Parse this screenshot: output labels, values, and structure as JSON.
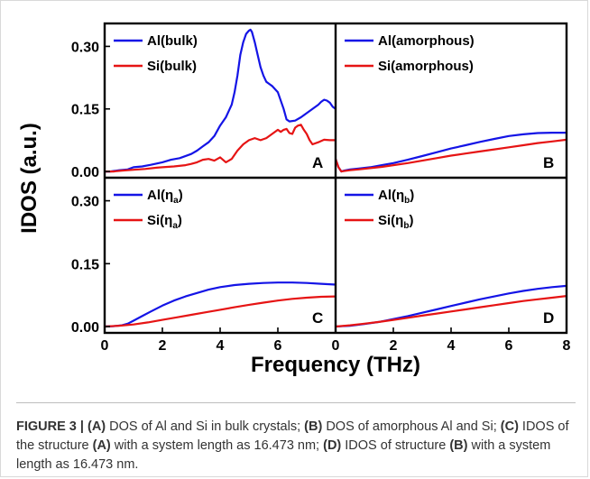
{
  "chart_data": {
    "type": "line",
    "layout": "2x2 panel grid, shared axes",
    "ylabel": "IDOS (a.u.)",
    "xlabel": "Frequency (THz)",
    "x_ticks": [
      "0",
      "2",
      "4",
      "6",
      "8"
    ],
    "y_ticks": [
      "0.00",
      "0.15",
      "0.30"
    ],
    "colors": {
      "Al": "#1414e6",
      "Si": "#e61414"
    },
    "panels": [
      {
        "id": "A",
        "label": "A",
        "xlim": [
          0,
          8
        ],
        "ylim": [
          -0.015,
          0.355
        ],
        "legend": "top-left",
        "series": [
          {
            "name": "Al(bulk)",
            "x": [
              0,
              0.2,
              0.5,
              0.8,
              1.0,
              1.3,
              1.6,
              2.0,
              2.3,
              2.6,
              3.0,
              3.2,
              3.4,
              3.6,
              3.8,
              4.0,
              4.2,
              4.4,
              4.5,
              4.6,
              4.7,
              4.8,
              4.9,
              5.0,
              5.05,
              5.1,
              5.2,
              5.3,
              5.4,
              5.5,
              5.6,
              5.7,
              5.8,
              6.0,
              6.2,
              6.3,
              6.4,
              6.6,
              6.8,
              7.0,
              7.2,
              7.4,
              7.5,
              7.6,
              7.7,
              7.8,
              7.9,
              8.0
            ],
            "y": [
              0.0,
              0.0,
              0.003,
              0.005,
              0.01,
              0.012,
              0.016,
              0.022,
              0.028,
              0.032,
              0.042,
              0.05,
              0.06,
              0.07,
              0.085,
              0.11,
              0.13,
              0.16,
              0.19,
              0.23,
              0.28,
              0.31,
              0.33,
              0.338,
              0.34,
              0.335,
              0.31,
              0.28,
              0.25,
              0.23,
              0.215,
              0.21,
              0.205,
              0.19,
              0.15,
              0.125,
              0.12,
              0.122,
              0.13,
              0.14,
              0.15,
              0.16,
              0.167,
              0.172,
              0.17,
              0.165,
              0.155,
              0.15
            ]
          },
          {
            "name": "Si(bulk)",
            "x": [
              0,
              0.3,
              0.6,
              1.0,
              1.4,
              1.8,
              2.0,
              2.4,
              2.8,
              3.0,
              3.2,
              3.4,
              3.6,
              3.8,
              4.0,
              4.2,
              4.4,
              4.6,
              4.8,
              5.0,
              5.2,
              5.4,
              5.6,
              5.8,
              6.0,
              6.1,
              6.2,
              6.3,
              6.4,
              6.5,
              6.6,
              6.7,
              6.8,
              6.9,
              7.0,
              7.1,
              7.2,
              7.4,
              7.6,
              7.8,
              8.0
            ],
            "y": [
              0.0,
              0.0,
              0.002,
              0.004,
              0.006,
              0.009,
              0.01,
              0.012,
              0.015,
              0.018,
              0.022,
              0.028,
              0.03,
              0.026,
              0.034,
              0.022,
              0.03,
              0.05,
              0.065,
              0.075,
              0.08,
              0.075,
              0.08,
              0.09,
              0.1,
              0.095,
              0.1,
              0.102,
              0.092,
              0.09,
              0.105,
              0.11,
              0.112,
              0.1,
              0.09,
              0.075,
              0.065,
              0.07,
              0.076,
              0.075,
              0.075
            ]
          }
        ]
      },
      {
        "id": "B",
        "label": "B",
        "xlim": [
          0,
          8
        ],
        "ylim": [
          -0.015,
          0.355
        ],
        "legend": "top-left",
        "series": [
          {
            "name": "Al(amorphous)",
            "x": [
              0,
              0.1,
              0.2,
              0.3,
              0.5,
              0.8,
              1.2,
              1.6,
              2.0,
              2.5,
              3.0,
              3.5,
              4.0,
              4.5,
              5.0,
              5.5,
              6.0,
              6.5,
              7.0,
              7.5,
              8.0
            ],
            "y": [
              0.03,
              0.01,
              0.0,
              0.002,
              0.005,
              0.007,
              0.01,
              0.015,
              0.02,
              0.028,
              0.037,
              0.046,
              0.055,
              0.063,
              0.071,
              0.078,
              0.085,
              0.089,
              0.092,
              0.093,
              0.093
            ]
          },
          {
            "name": "Si(amorphous)",
            "x": [
              0,
              0.1,
              0.2,
              0.3,
              0.5,
              0.8,
              1.2,
              1.6,
              2.0,
              2.5,
              3.0,
              3.5,
              4.0,
              4.5,
              5.0,
              5.5,
              6.0,
              6.5,
              7.0,
              7.5,
              8.0
            ],
            "y": [
              0.03,
              0.01,
              0.0,
              0.001,
              0.003,
              0.005,
              0.008,
              0.011,
              0.015,
              0.02,
              0.026,
              0.032,
              0.038,
              0.043,
              0.048,
              0.053,
              0.058,
              0.063,
              0.068,
              0.072,
              0.076
            ]
          }
        ]
      },
      {
        "id": "C",
        "label": "C",
        "xlim": [
          0,
          8
        ],
        "ylim": [
          -0.015,
          0.355
        ],
        "legend": "top-left",
        "series": [
          {
            "name": "Al(ηa)",
            "x": [
              0,
              0.3,
              0.6,
              0.8,
              1.0,
              1.3,
              1.6,
              2.0,
              2.4,
              2.8,
              3.2,
              3.6,
              4.0,
              4.5,
              5.0,
              5.5,
              6.0,
              6.5,
              7.0,
              7.5,
              8.0
            ],
            "y": [
              0.0,
              0.001,
              0.003,
              0.007,
              0.014,
              0.025,
              0.036,
              0.05,
              0.062,
              0.072,
              0.08,
              0.088,
              0.094,
              0.099,
              0.102,
              0.104,
              0.105,
              0.105,
              0.104,
              0.102,
              0.1
            ]
          },
          {
            "name": "Si(ηa)",
            "x": [
              0,
              0.5,
              1.0,
              1.5,
              2.0,
              2.5,
              3.0,
              3.5,
              4.0,
              4.5,
              5.0,
              5.5,
              6.0,
              6.5,
              7.0,
              7.5,
              8.0
            ],
            "y": [
              0.0,
              0.002,
              0.005,
              0.01,
              0.016,
              0.022,
              0.028,
              0.034,
              0.04,
              0.046,
              0.052,
              0.057,
              0.062,
              0.066,
              0.069,
              0.071,
              0.072
            ]
          }
        ]
      },
      {
        "id": "D",
        "label": "D",
        "xlim": [
          0,
          8
        ],
        "ylim": [
          -0.015,
          0.355
        ],
        "legend": "top-left",
        "series": [
          {
            "name": "Al(ηb)",
            "x": [
              0,
              0.5,
              1.0,
              1.5,
              2.0,
              2.5,
              3.0,
              3.5,
              4.0,
              4.5,
              5.0,
              5.5,
              6.0,
              6.5,
              7.0,
              7.5,
              8.0
            ],
            "y": [
              0.0,
              0.002,
              0.006,
              0.011,
              0.018,
              0.025,
              0.033,
              0.041,
              0.049,
              0.057,
              0.065,
              0.072,
              0.079,
              0.085,
              0.09,
              0.094,
              0.097
            ]
          },
          {
            "name": "Si(ηb)",
            "x": [
              0,
              0.5,
              1.0,
              1.5,
              2.0,
              2.5,
              3.0,
              3.5,
              4.0,
              4.5,
              5.0,
              5.5,
              6.0,
              6.5,
              7.0,
              7.5,
              8.0
            ],
            "y": [
              0.0,
              0.003,
              0.007,
              0.011,
              0.016,
              0.021,
              0.026,
              0.031,
              0.036,
              0.041,
              0.046,
              0.051,
              0.056,
              0.061,
              0.065,
              0.069,
              0.073
            ]
          }
        ]
      }
    ]
  },
  "legend_labels": {
    "A": [
      {
        "base": "Al(bulk)",
        "sub": ""
      },
      {
        "base": "Si(bulk)",
        "sub": ""
      }
    ],
    "B": [
      {
        "base": "Al(amorphous)",
        "sub": ""
      },
      {
        "base": "Si(amorphous)",
        "sub": ""
      }
    ],
    "C": [
      {
        "base": "Al(η",
        "sub": "a",
        "close": ")"
      },
      {
        "base": "Si(η",
        "sub": "a",
        "close": ")"
      }
    ],
    "D": [
      {
        "base": "Al(η",
        "sub": "b",
        "close": ")"
      },
      {
        "base": "Si(η",
        "sub": "b",
        "close": ")"
      }
    ]
  },
  "caption": {
    "label": "FIGURE 3 |",
    "parts": [
      {
        "b": true,
        "t": "(A)"
      },
      {
        "b": false,
        "t": " DOS of Al and Si in bulk crystals; "
      },
      {
        "b": true,
        "t": "(B)"
      },
      {
        "b": false,
        "t": " DOS of amorphous Al and Si; "
      },
      {
        "b": true,
        "t": "(C)"
      },
      {
        "b": false,
        "t": " IDOS of the structure "
      },
      {
        "b": true,
        "t": "(A)"
      },
      {
        "b": false,
        "t": " with a system length as 16.473 nm; "
      },
      {
        "b": true,
        "t": "(D)"
      },
      {
        "b": false,
        "t": " IDOS of structure "
      },
      {
        "b": true,
        "t": "(B)"
      },
      {
        "b": false,
        "t": " with a system length as 16.473 nm."
      }
    ]
  }
}
